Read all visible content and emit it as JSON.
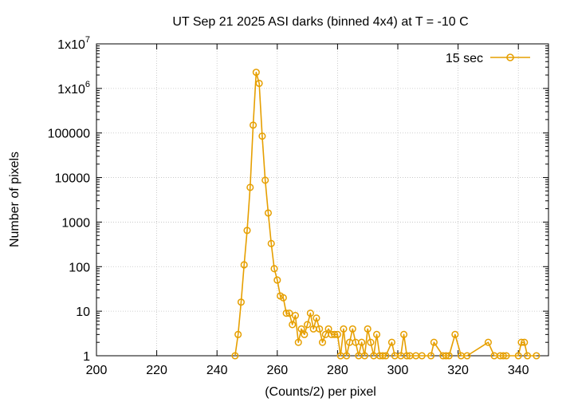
{
  "chart_data": {
    "type": "line",
    "title": "UT Sep 21 2025 ASI darks (binned 4x4) at T = -10 C",
    "xlabel": "(Counts/2) per pixel",
    "ylabel": "Number of pixels",
    "xlim": [
      200,
      350
    ],
    "ylim": [
      1,
      10000000
    ],
    "yscale": "log",
    "grid": true,
    "legend_position": "top-right",
    "x_ticks": [
      200,
      220,
      240,
      260,
      280,
      300,
      320,
      340
    ],
    "x_tick_labels": [
      "200",
      "220",
      "240",
      "260",
      "280",
      "300",
      "320",
      "340"
    ],
    "y_ticks": [
      1,
      10,
      100,
      1000,
      10000,
      100000,
      1000000,
      10000000
    ],
    "y_tick_labels": [
      "1",
      "10",
      "100",
      "1000",
      "10000",
      "100000",
      "1x10^6",
      "1x10^7"
    ],
    "series": [
      {
        "name": "15 sec",
        "color": "#e69f00",
        "marker": "circle",
        "x": [
          246,
          247,
          248,
          249,
          250,
          251,
          252,
          253,
          254,
          255,
          256,
          257,
          258,
          259,
          260,
          261,
          262,
          263,
          264,
          265,
          266,
          267,
          268,
          269,
          270,
          271,
          272,
          273,
          274,
          275,
          276,
          277,
          278,
          279,
          280,
          281,
          282,
          283,
          284,
          285,
          286,
          287,
          288,
          289,
          290,
          291,
          292,
          293,
          294,
          295,
          296,
          298,
          299,
          301,
          302,
          303,
          304,
          306,
          308,
          311,
          312,
          315,
          316,
          317,
          319,
          321,
          323,
          330,
          332,
          334,
          335,
          336,
          340,
          341,
          342,
          343,
          346
        ],
        "y": [
          1,
          3,
          16,
          110,
          650,
          6000,
          150000,
          2300000,
          1300000,
          85000,
          8700,
          1600,
          330,
          90,
          50,
          22,
          20,
          9,
          9,
          5,
          8,
          2,
          4,
          3,
          5,
          9,
          4,
          7,
          4,
          2,
          3,
          4,
          3,
          3,
          3,
          1,
          4,
          1,
          2,
          4,
          2,
          1,
          2,
          1,
          4,
          2,
          1,
          3,
          1,
          1,
          1,
          2,
          1,
          1,
          3,
          1,
          1,
          1,
          1,
          1,
          2,
          1,
          1,
          1,
          3,
          1,
          1,
          2,
          1,
          1,
          1,
          1,
          1,
          2,
          2,
          1,
          1
        ]
      }
    ]
  }
}
